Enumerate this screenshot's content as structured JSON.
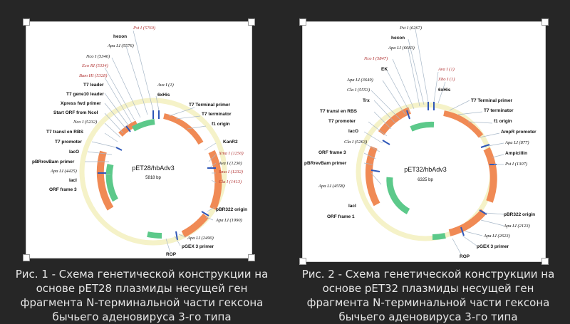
{
  "figure_left": {
    "plasmid_name": "pET28/hbAdv3",
    "plasmid_size": "5818 bp",
    "labels": {
      "pst": "Pst I (5760)",
      "hexon": "hexon",
      "apa_a": "Apa LI (5576)",
      "nco_a": "Nco I (5340)",
      "eco": "Eco RI (5334)",
      "bam": "Bam HI (5328)",
      "t7leader": "T7 leader",
      "gene10": "T7 gene10 leader",
      "xpress": "Xpress fwd primer",
      "start_orf": "Start ORF from NcoI",
      "nco_b": "Nco I (5232)",
      "t7rbs": "T7 transl en RBS",
      "t7prom": "T7 promoter",
      "laco": "lacO",
      "pbrrev": "pBRrevBam primer",
      "apa_b": "Apa LI (4425)",
      "laci": "lacI",
      "orf3": "ORF frame 3",
      "ava": "Ava I (1)",
      "his": "6xHis",
      "t7term_primer": "T7 Terminal primer",
      "t7term": "T7 terminator",
      "f1": "f1 origin",
      "kanr": "KanR2",
      "xma": "Xma I (1250)",
      "ava_b": "Ava I (1230)",
      "sma": "Sma I (1232)",
      "cla": "Cla I (1413)",
      "pbr_origin": "pBR322 origin",
      "apa_c": "Apa LI (1990)",
      "apa_d": "Apa LI (2490)",
      "pgex": "pGEX 3 primer",
      "rop": "ROP"
    }
  },
  "figure_right": {
    "plasmid_name": "pET32/hbAdv3",
    "plasmid_size": "6325 bp",
    "labels": {
      "pst": "Pst I (6267)",
      "hexon": "hexon",
      "apa_a": "Apa LI (6083)",
      "nco": "Nco I (5847)",
      "ek": "EK",
      "apa_b": "Apa LI (3649)",
      "cla_a": "Cla I (5553)",
      "trx": "Trx",
      "t7rbs": "T7 transl en RBS",
      "t7prom": "T7 promoter",
      "laco": "lacO",
      "cla_b": "Cla I (5263)",
      "orf3": "ORF frame 3",
      "pbrrev": "pBRrevBam primer",
      "apa_c": "Apa LI (4558)",
      "laci": "lacI",
      "orf1": "ORF frame 1",
      "ava": "Ava I (1)",
      "xho": "Xho I (1)",
      "his": "6xHis",
      "t7term_primer": "T7 Terminal primer",
      "t7term": "T7 terminator",
      "f1": "f1 origin",
      "ampr_prom": "AmpR promoter",
      "apa_d": "Apa LI (877)",
      "ampicillin": "Ampicillin",
      "pst_b": "Pst I (1307)",
      "pbr_origin": "pBR322 origin",
      "apa_e": "Apa LI (2123)",
      "apa_f": "Apa LI (2623)",
      "pgex": "pGEX 3 primer",
      "rop": "ROP"
    }
  },
  "captions": {
    "left": "Рис. 1 - Схема генетической конструкции на основе pET28 плазмиды несущей ген фрагмента N-терминальной части гексона бычьего аденовируса 3-го типа",
    "right": "Рис. 2 - Схема генетической конструкции на основе pET32 плазмиды несущей ген фрагмента N-терминальной части гексона бычьего аденовируса 3-го типа"
  },
  "colors": {
    "background": "#262626",
    "backbone": "#f5f2c8",
    "feature_orange": "#f08a55",
    "feature_green": "#5cc98a",
    "marker_blue": "#2f57b8",
    "label_red": "#b03030",
    "caption_text": "#e6e6e6"
  }
}
